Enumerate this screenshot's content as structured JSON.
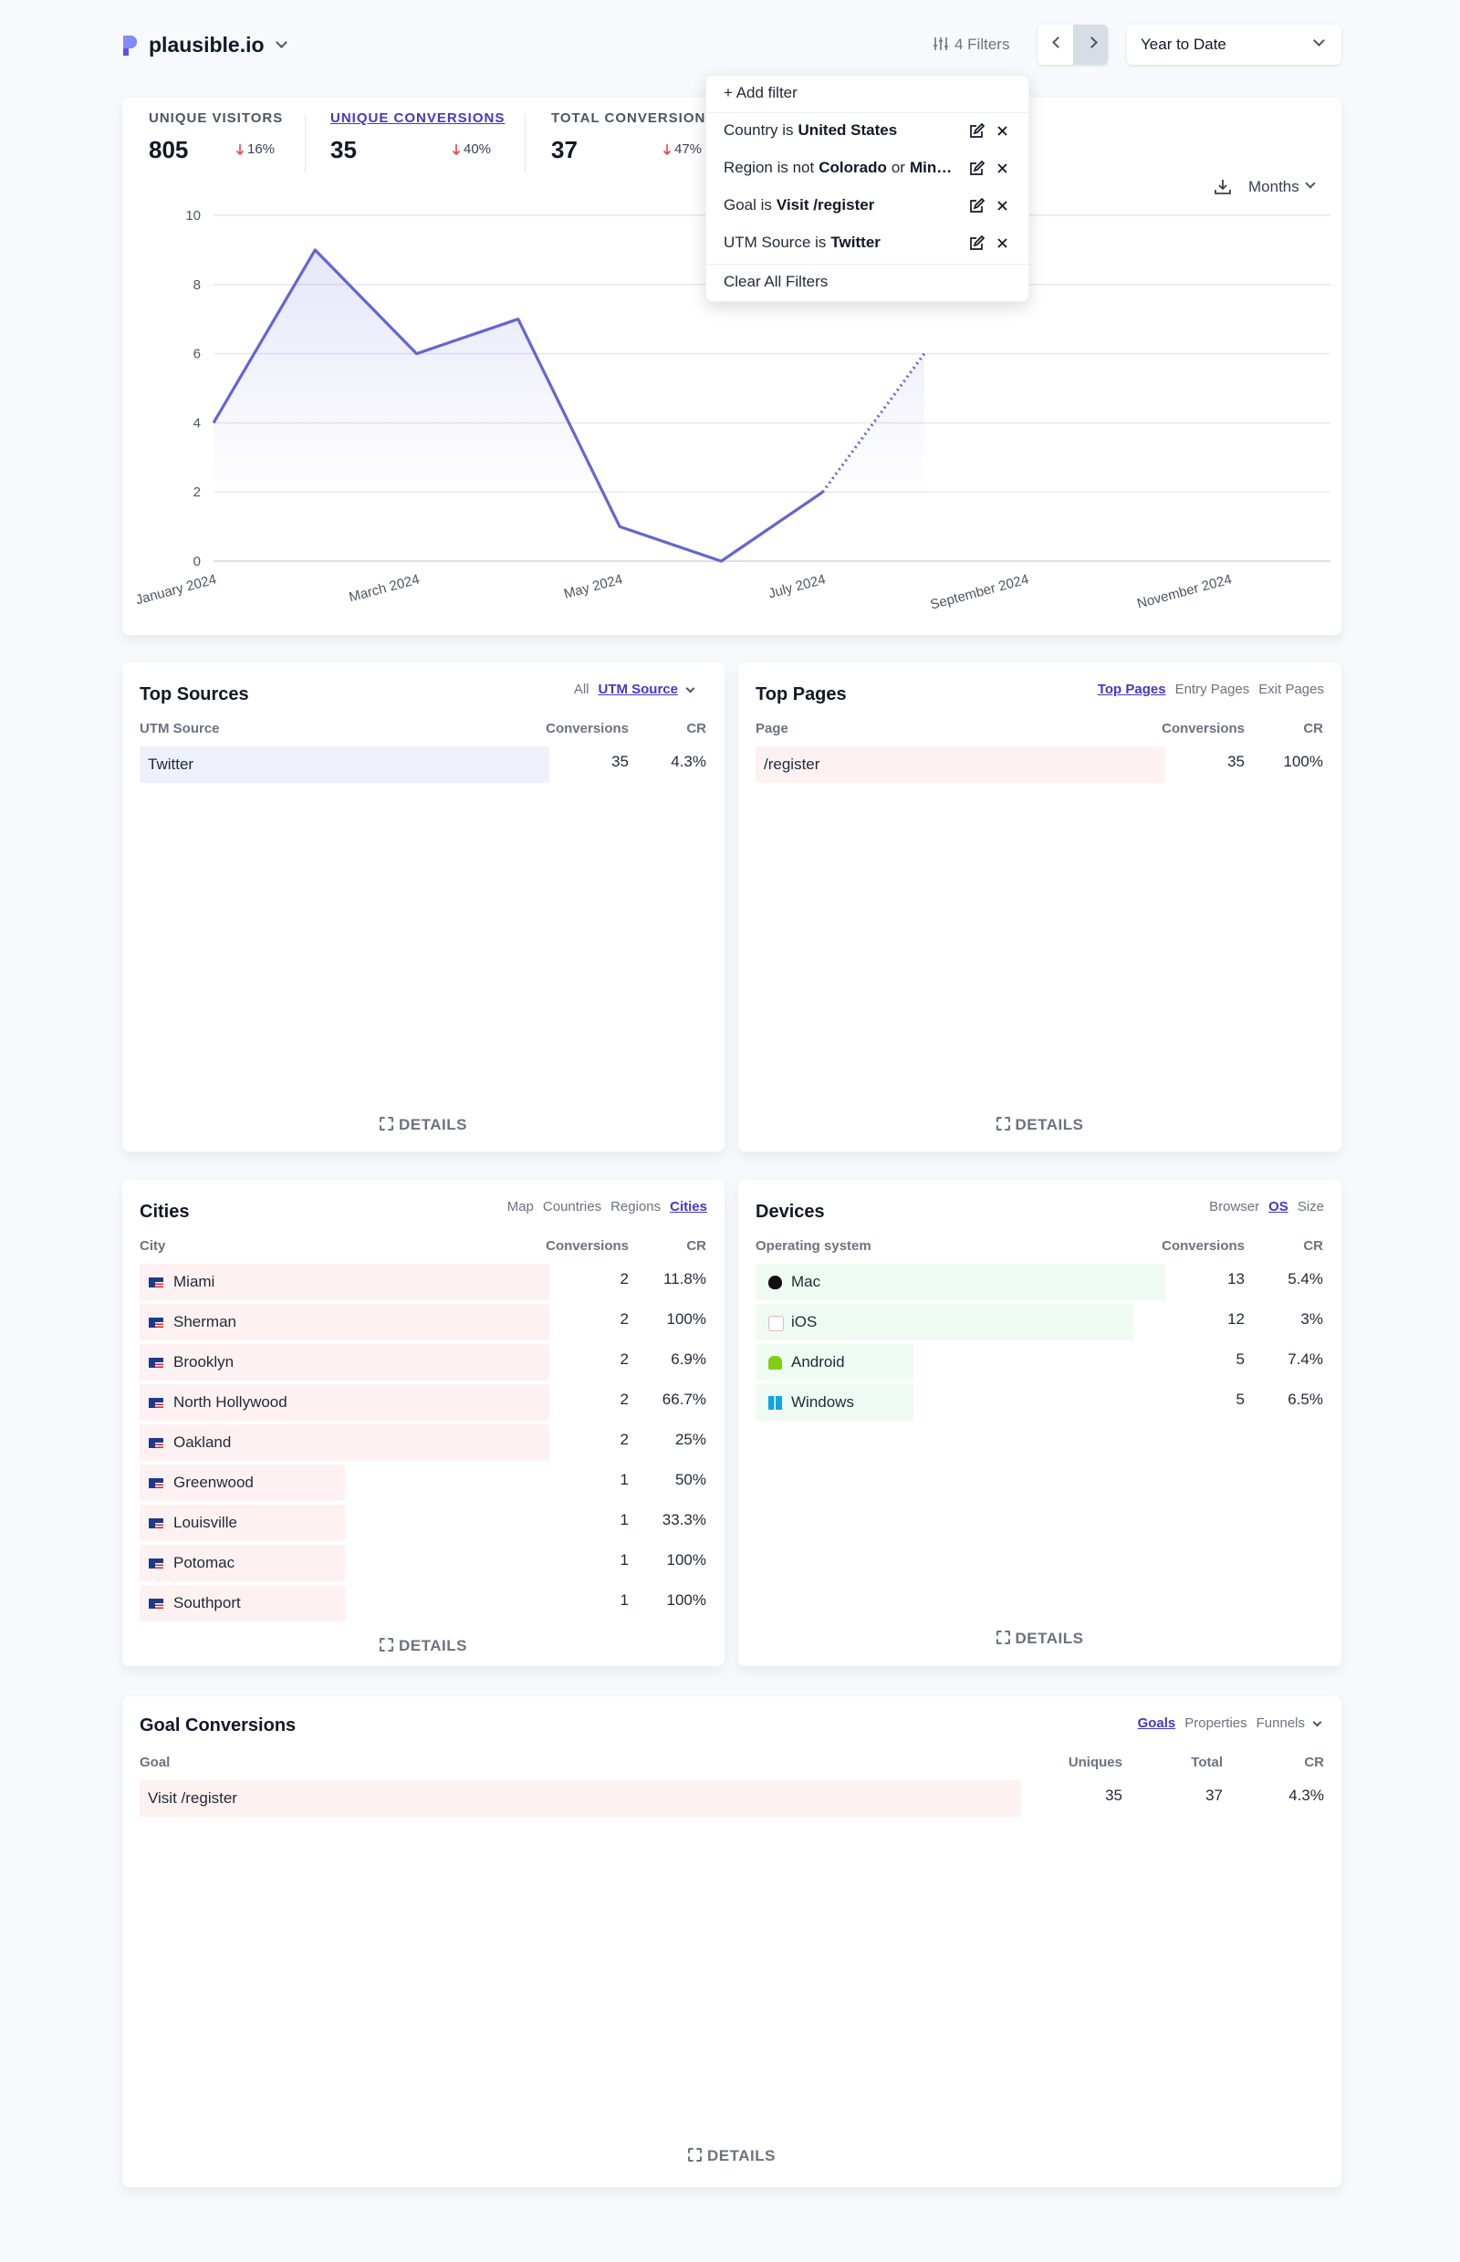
{
  "header": {
    "site": "plausible.io",
    "filters": "4 Filters",
    "period": "Year to Date"
  },
  "filter_menu": {
    "add": "+ Add filter",
    "items": [
      {
        "text": "Country is",
        "value": "United States"
      },
      {
        "text": "Region is not",
        "value": "Colorado",
        "joiner": "or",
        "value2": "Min…"
      },
      {
        "text": "Goal is",
        "value": "Visit /register"
      },
      {
        "text": "UTM Source is",
        "value": "Twitter"
      }
    ],
    "clear": "Clear All Filters"
  },
  "top_stats": {
    "selected": 1,
    "items": [
      {
        "label": "UNIQUE VISITORS",
        "value": 805,
        "change": "16%"
      },
      {
        "label": "UNIQUE CONVERSIONS",
        "value": 35,
        "change": "40%"
      },
      {
        "label": "TOTAL CONVERSIONS",
        "value": 37,
        "change": "47%"
      }
    ]
  },
  "interval": "Months",
  "chart_data": {
    "type": "line",
    "categories": [
      "January 2024",
      null,
      "March 2024",
      null,
      "May 2024",
      null,
      "July 2024",
      null,
      "September 2024",
      null,
      "November 2024",
      null
    ],
    "values": [
      4,
      9,
      6,
      7,
      1,
      0,
      2,
      6,
      null,
      null,
      null,
      null
    ],
    "color": "#6366d1",
    "ylim": [
      0,
      10
    ],
    "yticks": [
      0,
      2,
      4,
      6,
      8,
      10
    ],
    "grid": true,
    "area": true,
    "last_period_incomplete": true
  },
  "top_sources": {
    "title": "Top Sources",
    "tabs": [
      "All",
      "UTM Source"
    ],
    "active_tab": 1,
    "columns": [
      "UTM Source",
      "Conversions",
      "CR"
    ],
    "rows": [
      [
        "Twitter",
        35,
        "4.3%"
      ]
    ],
    "details": "DETAILS"
  },
  "top_pages": {
    "title": "Top Pages",
    "tabs": [
      "Top Pages",
      "Entry Pages",
      "Exit Pages"
    ],
    "active_tab": 0,
    "columns": [
      "Page",
      "Conversions",
      "CR"
    ],
    "rows": [
      [
        "/register",
        35,
        "100%"
      ]
    ],
    "details": "DETAILS"
  },
  "locations": {
    "title": "Cities",
    "tabs": [
      "Map",
      "Countries",
      "Regions",
      "Cities"
    ],
    "active_tab": 3,
    "columns": [
      "City",
      "Conversions",
      "CR"
    ],
    "rows": [
      [
        "Miami",
        2,
        "11.8%"
      ],
      [
        "Sherman",
        2,
        "100%"
      ],
      [
        "Brooklyn",
        2,
        "6.9%"
      ],
      [
        "North Hollywood",
        2,
        "66.7%"
      ],
      [
        "Oakland",
        2,
        "25%"
      ],
      [
        "Greenwood",
        1,
        "50%"
      ],
      [
        "Louisville",
        1,
        "33.3%"
      ],
      [
        "Potomac",
        1,
        "100%"
      ],
      [
        "Southport",
        1,
        "100%"
      ]
    ],
    "details": "DETAILS"
  },
  "devices": {
    "title": "Devices",
    "tabs": [
      "Browser",
      "OS",
      "Size"
    ],
    "active_tab": 1,
    "columns": [
      "Operating system",
      "Conversions",
      "CR"
    ],
    "rows": [
      [
        "Mac",
        13,
        "5.4%"
      ],
      [
        "iOS",
        12,
        "3%"
      ],
      [
        "Android",
        5,
        "7.4%"
      ],
      [
        "Windows",
        5,
        "6.5%"
      ]
    ],
    "details": "DETAILS"
  },
  "goals": {
    "title": "Goal Conversions",
    "tabs": [
      "Goals",
      "Properties",
      "Funnels"
    ],
    "active_tab": 0,
    "columns": [
      "Goal",
      "Uniques",
      "Total",
      "CR"
    ],
    "rows": [
      [
        "Visit /register",
        35,
        37,
        "4.3%"
      ]
    ],
    "details": "DETAILS"
  }
}
